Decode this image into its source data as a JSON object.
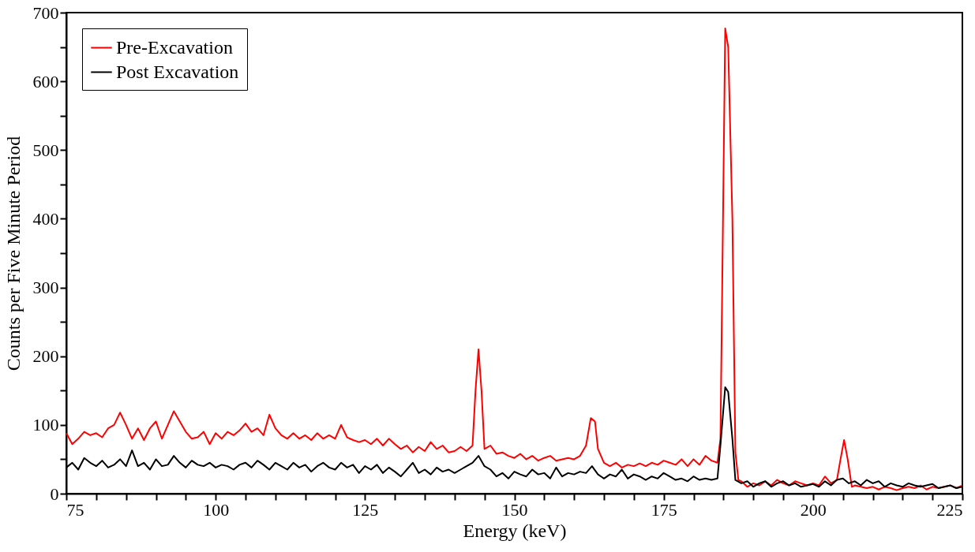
{
  "chart_data": {
    "type": "line",
    "xlabel": "Energy (keV)",
    "ylabel": "Counts per  Five Minute Period",
    "xlim": [
      75,
      225
    ],
    "ylim": [
      0,
      700
    ],
    "xticks": [
      75,
      {
        "value": 80,
        "label": null
      },
      {
        "value": 85,
        "label": null
      },
      {
        "value": 90,
        "label": null
      },
      {
        "value": 95,
        "label": null
      },
      100,
      {
        "value": 105,
        "label": null
      },
      {
        "value": 110,
        "label": null
      },
      {
        "value": 115,
        "label": null
      },
      {
        "value": 120,
        "label": null
      },
      125,
      {
        "value": 130,
        "label": null
      },
      {
        "value": 135,
        "label": null
      },
      {
        "value": 140,
        "label": null
      },
      {
        "value": 145,
        "label": null
      },
      150,
      {
        "value": 155,
        "label": null
      },
      {
        "value": 160,
        "label": null
      },
      {
        "value": 165,
        "label": null
      },
      {
        "value": 170,
        "label": null
      },
      175,
      {
        "value": 180,
        "label": null
      },
      {
        "value": 185,
        "label": null
      },
      {
        "value": 190,
        "label": null
      },
      {
        "value": 195,
        "label": null
      },
      200,
      {
        "value": 205,
        "label": null
      },
      {
        "value": 210,
        "label": null
      },
      {
        "value": 215,
        "label": null
      },
      {
        "value": 220,
        "label": null
      },
      225
    ],
    "yticks": [
      0,
      {
        "value": 50,
        "label": null
      },
      100,
      {
        "value": 150,
        "label": null
      },
      200,
      {
        "value": 250,
        "label": null
      },
      300,
      {
        "value": 350,
        "label": null
      },
      400,
      {
        "value": 450,
        "label": null
      },
      500,
      {
        "value": 550,
        "label": null
      },
      600,
      {
        "value": 650,
        "label": null
      },
      700
    ],
    "grid": false,
    "legend": "top left",
    "marker": "none",
    "line_style": "solid",
    "series": [
      {
        "name": "Pre-Excavation",
        "color": "#ff0000",
        "x": [
          75,
          76,
          77,
          78,
          79,
          80,
          81,
          82,
          83,
          84,
          85,
          86,
          87,
          88,
          89,
          90,
          91,
          92,
          93,
          94,
          95,
          96,
          97,
          98,
          99,
          100,
          101,
          102,
          103,
          104,
          105,
          106,
          107,
          108,
          109,
          110,
          111,
          112,
          113,
          114,
          115,
          116,
          117,
          118,
          119,
          120,
          121,
          122,
          123,
          124,
          125,
          126,
          127,
          128,
          129,
          130,
          131,
          132,
          133,
          134,
          135,
          136,
          137,
          138,
          139,
          140,
          141,
          142,
          143,
          143.5,
          144,
          144.5,
          145,
          146,
          147,
          148,
          149,
          150,
          151,
          152,
          153,
          154,
          155,
          156,
          157,
          158,
          159,
          160,
          161,
          162,
          162.8,
          163.5,
          164,
          165,
          166,
          167,
          168,
          169,
          170,
          171,
          172,
          173,
          174,
          175,
          176,
          177,
          178,
          179,
          180,
          181,
          182,
          183,
          184,
          184.5,
          185.3,
          185.8,
          186.5,
          187,
          187.5,
          188,
          189,
          190,
          191,
          192,
          193,
          194,
          195,
          196,
          197,
          198,
          199,
          200,
          201,
          202,
          203,
          204,
          204.6,
          205.2,
          205.8,
          206.5,
          207,
          208,
          209,
          210,
          211,
          212,
          213,
          214,
          215,
          216,
          217,
          218,
          219,
          220,
          221,
          222,
          223,
          224,
          225
        ],
        "values": [
          88,
          72,
          80,
          90,
          85,
          88,
          82,
          95,
          100,
          118,
          100,
          80,
          95,
          78,
          95,
          105,
          80,
          100,
          120,
          105,
          90,
          80,
          82,
          90,
          72,
          88,
          80,
          90,
          85,
          92,
          102,
          90,
          95,
          85,
          115,
          95,
          85,
          80,
          88,
          80,
          85,
          78,
          88,
          80,
          85,
          80,
          100,
          82,
          78,
          75,
          78,
          72,
          80,
          70,
          80,
          72,
          65,
          70,
          60,
          68,
          62,
          75,
          65,
          70,
          60,
          62,
          68,
          62,
          70,
          150,
          210,
          150,
          65,
          70,
          58,
          60,
          55,
          52,
          58,
          50,
          55,
          48,
          52,
          55,
          48,
          50,
          52,
          50,
          55,
          70,
          110,
          105,
          65,
          45,
          40,
          45,
          38,
          42,
          40,
          44,
          40,
          45,
          42,
          48,
          45,
          42,
          50,
          40,
          50,
          42,
          55,
          48,
          45,
          80,
          677,
          650,
          400,
          60,
          20,
          18,
          10,
          15,
          12,
          18,
          12,
          20,
          15,
          12,
          18,
          15,
          12,
          15,
          12,
          25,
          15,
          20,
          50,
          78,
          50,
          10,
          12,
          10,
          8,
          10,
          6,
          10,
          8,
          5,
          8,
          10,
          8,
          12,
          6,
          10,
          8,
          10,
          12,
          8,
          12
        ]
      },
      {
        "name": "Post Excavation",
        "color": "#000000",
        "x": [
          75,
          76,
          77,
          78,
          79,
          80,
          81,
          82,
          83,
          84,
          85,
          86,
          87,
          88,
          89,
          90,
          91,
          92,
          93,
          94,
          95,
          96,
          97,
          98,
          99,
          100,
          101,
          102,
          103,
          104,
          105,
          106,
          107,
          108,
          109,
          110,
          111,
          112,
          113,
          114,
          115,
          116,
          117,
          118,
          119,
          120,
          121,
          122,
          123,
          124,
          125,
          126,
          127,
          128,
          129,
          130,
          131,
          132,
          133,
          134,
          135,
          136,
          137,
          138,
          139,
          140,
          141,
          142,
          143,
          144,
          145,
          146,
          147,
          148,
          149,
          150,
          151,
          152,
          153,
          154,
          155,
          156,
          157,
          158,
          159,
          160,
          161,
          162,
          163,
          164,
          165,
          166,
          167,
          168,
          169,
          170,
          171,
          172,
          173,
          174,
          175,
          176,
          177,
          178,
          179,
          180,
          181,
          182,
          183,
          184,
          184.5,
          185.3,
          185.8,
          186.5,
          187,
          188,
          189,
          190,
          191,
          192,
          193,
          194,
          195,
          196,
          197,
          198,
          199,
          200,
          201,
          202,
          203,
          204,
          205,
          206,
          207,
          208,
          209,
          210,
          211,
          212,
          213,
          214,
          215,
          216,
          217,
          218,
          219,
          220,
          221,
          222,
          223,
          224,
          225
        ],
        "values": [
          38,
          45,
          35,
          52,
          45,
          40,
          48,
          38,
          42,
          50,
          40,
          63,
          40,
          45,
          35,
          50,
          40,
          42,
          55,
          45,
          38,
          48,
          42,
          40,
          45,
          38,
          42,
          40,
          35,
          42,
          45,
          38,
          48,
          42,
          35,
          45,
          40,
          35,
          45,
          38,
          42,
          32,
          40,
          45,
          38,
          35,
          45,
          38,
          42,
          30,
          40,
          35,
          42,
          30,
          38,
          32,
          25,
          35,
          45,
          30,
          35,
          28,
          38,
          32,
          35,
          30,
          35,
          40,
          45,
          55,
          40,
          35,
          25,
          30,
          22,
          32,
          28,
          25,
          35,
          28,
          30,
          22,
          38,
          25,
          30,
          28,
          32,
          30,
          40,
          28,
          22,
          28,
          25,
          35,
          22,
          28,
          25,
          20,
          25,
          22,
          30,
          25,
          20,
          22,
          18,
          25,
          20,
          22,
          20,
          22,
          70,
          155,
          148,
          80,
          20,
          15,
          18,
          10,
          15,
          18,
          10,
          15,
          18,
          12,
          15,
          10,
          12,
          14,
          10,
          18,
          12,
          20,
          22,
          15,
          18,
          12,
          20,
          15,
          18,
          10,
          15,
          12,
          10,
          15,
          12,
          10,
          12,
          14,
          8,
          10,
          12,
          8,
          10
        ]
      }
    ]
  }
}
